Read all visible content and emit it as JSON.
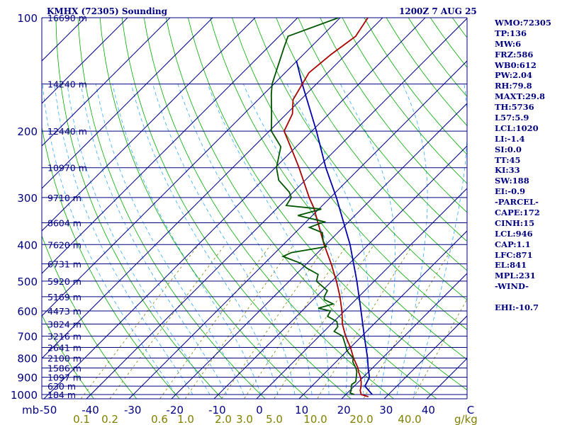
{
  "chart_data": {
    "type": "skew-t sounding",
    "station_title": "KMHX (72305) Sounding",
    "datetime": "1200Z  7 AUG 25",
    "pressure_labels": [
      "100",
      "200",
      "300",
      "400",
      "500",
      "600",
      "700",
      "800",
      "900",
      "1000"
    ],
    "pressure_unit": "mb",
    "temperature_labels": [
      "-50",
      "-40",
      "-30",
      "-20",
      "-10",
      "0",
      "10",
      "20",
      "30",
      "40",
      "C"
    ],
    "mixing_ratio_labels": [
      {
        "value": 0.1,
        "text": "0.1"
      },
      {
        "value": 0.2,
        "text": "0.2"
      },
      {
        "value": 0.6,
        "text": "0.6"
      },
      {
        "value": 1.0,
        "text": "1.0"
      },
      {
        "value": 2.0,
        "text": "2.0"
      },
      {
        "value": 3.0,
        "text": "3.0"
      },
      {
        "value": 5.0,
        "text": "5.0"
      },
      {
        "value": 10.0,
        "text": "10.0"
      },
      {
        "value": 20.0,
        "text": "20.0"
      },
      {
        "value": 40.0,
        "text": "40.0"
      }
    ],
    "mixing_ratio_unit": "g/kg",
    "height_levels": [
      {
        "p": 100,
        "label": "16690 m"
      },
      {
        "p": 150,
        "label": "14240 m"
      },
      {
        "p": 200,
        "label": "12440 m"
      },
      {
        "p": 250,
        "label": "10970 m"
      },
      {
        "p": 300,
        "label": "9710 m"
      },
      {
        "p": 350,
        "label": "8604 m"
      },
      {
        "p": 400,
        "label": "7620 m"
      },
      {
        "p": 450,
        "label": "6731 m"
      },
      {
        "p": 500,
        "label": "5920 m"
      },
      {
        "p": 550,
        "label": "5169 m"
      },
      {
        "p": 600,
        "label": "4473 m"
      },
      {
        "p": 650,
        "label": "3824 m"
      },
      {
        "p": 700,
        "label": "3216 m"
      },
      {
        "p": 750,
        "label": "2641 m"
      },
      {
        "p": 800,
        "label": "2100 m"
      },
      {
        "p": 850,
        "label": "1586 m"
      },
      {
        "p": 900,
        "label": "1097 m"
      },
      {
        "p": 950,
        "label": "630 m"
      },
      {
        "p": 1000,
        "label": "184 m"
      }
    ],
    "temperature_profile": [
      {
        "p": 1013,
        "t": 25.8
      },
      {
        "p": 1000,
        "t": 23.6
      },
      {
        "p": 975,
        "t": 22.4
      },
      {
        "p": 950,
        "t": 21.6
      },
      {
        "p": 925,
        "t": 20.6
      },
      {
        "p": 900,
        "t": 19.4
      },
      {
        "p": 870,
        "t": 17.6
      },
      {
        "p": 850,
        "t": 16.6
      },
      {
        "p": 800,
        "t": 13.2
      },
      {
        "p": 750,
        "t": 10.0
      },
      {
        "p": 700,
        "t": 6.2
      },
      {
        "p": 650,
        "t": 2.6
      },
      {
        "p": 600,
        "t": -0.6
      },
      {
        "p": 550,
        "t": -4.4
      },
      {
        "p": 500,
        "t": -8.9
      },
      {
        "p": 450,
        "t": -14.2
      },
      {
        "p": 400,
        "t": -20.4
      },
      {
        "p": 350,
        "t": -27.0
      },
      {
        "p": 320,
        "t": -31.4
      },
      {
        "p": 300,
        "t": -35.0
      },
      {
        "p": 250,
        "t": -44.4
      },
      {
        "p": 230,
        "t": -48.9
      },
      {
        "p": 200,
        "t": -56.5
      },
      {
        "p": 180,
        "t": -58.6
      },
      {
        "p": 165,
        "t": -61.8
      },
      {
        "p": 150,
        "t": -63.3
      },
      {
        "p": 140,
        "t": -64.4
      },
      {
        "p": 125,
        "t": -63.5
      },
      {
        "p": 112,
        "t": -62.0
      },
      {
        "p": 100,
        "t": -63.5
      }
    ],
    "dewpoint_profile": [
      {
        "p": 1000,
        "td": 22.0
      },
      {
        "p": 990,
        "td": 20.6
      },
      {
        "p": 975,
        "td": 20.3
      },
      {
        "p": 955,
        "td": 19.5
      },
      {
        "p": 940,
        "td": 19.0
      },
      {
        "p": 925,
        "td": 19.3
      },
      {
        "p": 900,
        "td": 18.4
      },
      {
        "p": 870,
        "td": 17.2
      },
      {
        "p": 850,
        "td": 16.1
      },
      {
        "p": 820,
        "td": 14.0
      },
      {
        "p": 800,
        "td": 13.1
      },
      {
        "p": 775,
        "td": 10.8
      },
      {
        "p": 760,
        "td": 9.6
      },
      {
        "p": 740,
        "td": 8.3
      },
      {
        "p": 700,
        "td": 5.5
      },
      {
        "p": 680,
        "td": 2.4
      },
      {
        "p": 660,
        "td": 2.1
      },
      {
        "p": 640,
        "td": 0.7
      },
      {
        "p": 620,
        "td": -2.7
      },
      {
        "p": 600,
        "td": -3.3
      },
      {
        "p": 590,
        "td": -6.8
      },
      {
        "p": 575,
        "td": -4.3
      },
      {
        "p": 560,
        "td": -7.4
      },
      {
        "p": 550,
        "td": -8.1
      },
      {
        "p": 530,
        "td": -8.8
      },
      {
        "p": 500,
        "td": -13.6
      },
      {
        "p": 480,
        "td": -14.8
      },
      {
        "p": 462,
        "td": -18.9
      },
      {
        "p": 448,
        "td": -21.6
      },
      {
        "p": 430,
        "td": -27.3
      },
      {
        "p": 420,
        "td": -26.2
      },
      {
        "p": 405,
        "td": -19.4
      },
      {
        "p": 392,
        "td": -21.4
      },
      {
        "p": 372,
        "td": -23.6
      },
      {
        "p": 360,
        "td": -27.9
      },
      {
        "p": 348,
        "td": -25.7
      },
      {
        "p": 335,
        "td": -33.4
      },
      {
        "p": 322,
        "td": -29.4
      },
      {
        "p": 315,
        "td": -38.5
      },
      {
        "p": 300,
        "td": -39.2
      },
      {
        "p": 290,
        "td": -41.0
      },
      {
        "p": 270,
        "td": -46.2
      },
      {
        "p": 250,
        "td": -49.7
      },
      {
        "p": 220,
        "td": -53.6
      },
      {
        "p": 200,
        "td": -59.5
      },
      {
        "p": 180,
        "td": -63.5
      },
      {
        "p": 160,
        "td": -68.1
      },
      {
        "p": 150,
        "td": -70.4
      },
      {
        "p": 120,
        "td": -76.2
      },
      {
        "p": 112,
        "td": -77.9
      },
      {
        "p": 100,
        "td": -70.4
      }
    ],
    "parcel_path": [
      {
        "p": 1000,
        "t": 26.2
      },
      {
        "p": 950,
        "t": 22.5
      },
      {
        "p": 900,
        "t": 21.5
      },
      {
        "p": 850,
        "t": 19.0
      },
      {
        "p": 800,
        "t": 16.5
      },
      {
        "p": 700,
        "t": 10.6
      },
      {
        "p": 600,
        "t": 3.9
      },
      {
        "p": 500,
        "t": -4.1
      },
      {
        "p": 400,
        "t": -14.3
      },
      {
        "p": 300,
        "t": -28.6
      },
      {
        "p": 250,
        "t": -38.1
      },
      {
        "p": 200,
        "t": -48.9
      },
      {
        "p": 150,
        "t": -63.3
      },
      {
        "p": 130,
        "t": -70.2
      }
    ],
    "indices": [
      "WMO:72305",
      "TP:136",
      "MW:6",
      "FRZ:586",
      "WB0:612",
      "PW:2.04",
      "RH:79.8",
      "MAXT:29.8",
      "TH:5736",
      "L57:5.9",
      "LCL:1020",
      "LI:-1.4",
      "SI:0.0",
      "TT:45",
      "KI:33",
      "SW:188",
      "EI:-0.9",
      "-PARCEL-",
      "CAPE:172",
      "CINH:15",
      "LCL:946",
      "CAP:1.1",
      "LFC:871",
      "EL:841",
      "MPL:231",
      "-WIND-",
      "",
      "EHI:-10.7"
    ],
    "colors": {
      "isobar": "#000080",
      "isotherm": "#000080",
      "dry_adiabat": "#00aa00",
      "moist_adiabat": "#33aaff",
      "mixing_ratio": "#808000",
      "temperature": "#aa0000",
      "dewpoint": "#005500",
      "parcel": "#0000aa",
      "text": "#000080",
      "axis_label": "#808000"
    }
  }
}
